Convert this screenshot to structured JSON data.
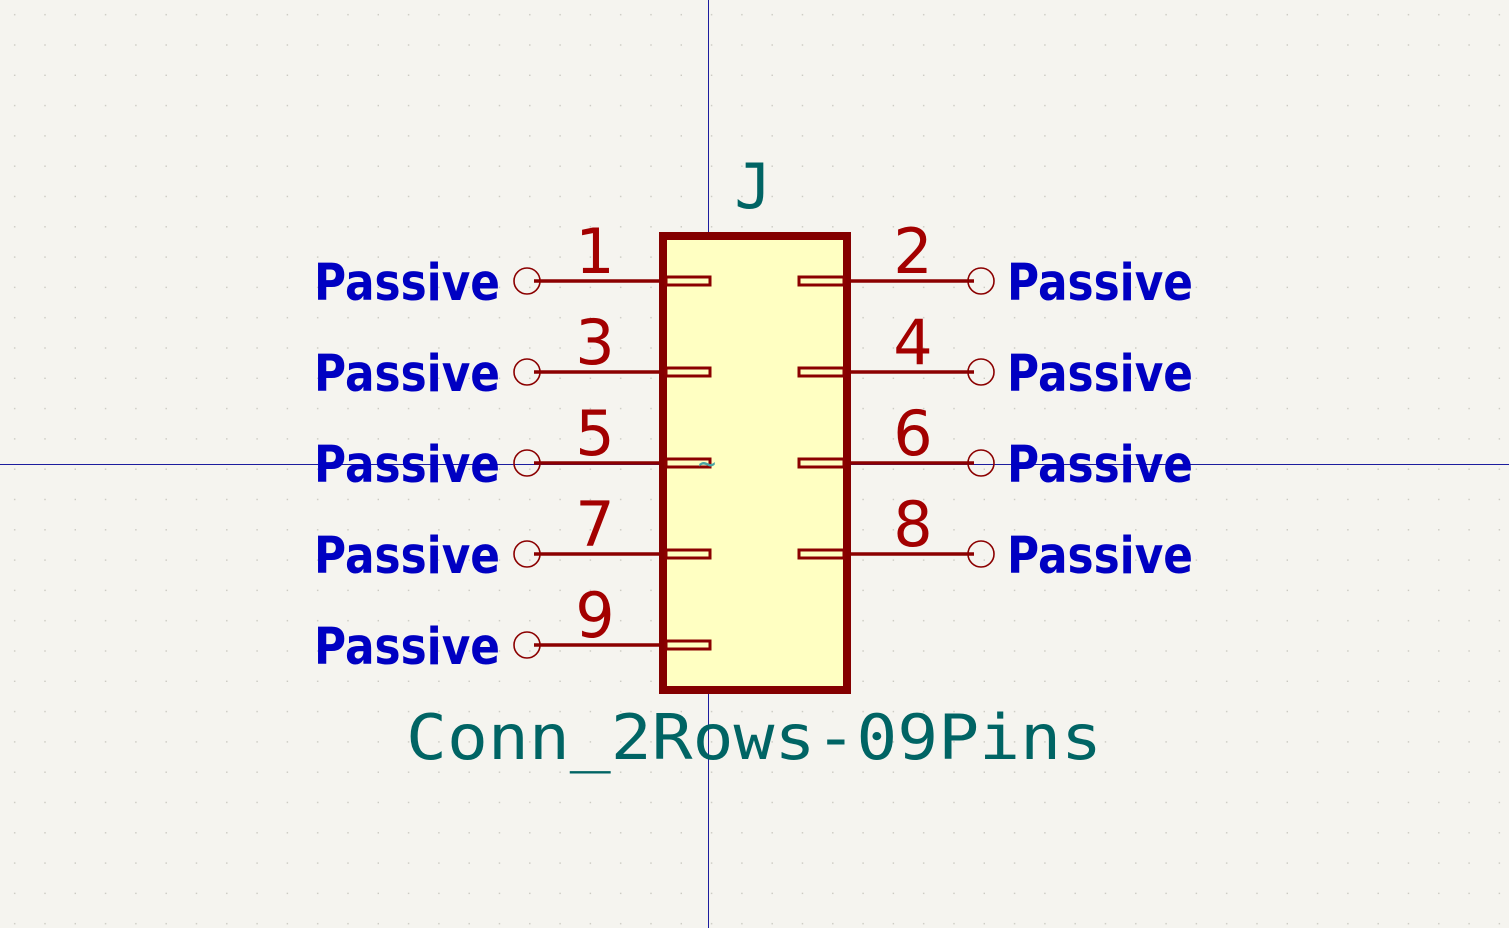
{
  "colors": {
    "background": "#f5f4ef",
    "grid_dot": "#c9c8c0",
    "crosshair": "#1c1c9e",
    "body_outline": "#840000",
    "body_fill": "#ffffc2",
    "pin": "#8b0000",
    "pin_number": "#a30000",
    "electrical_type": "#0000c2",
    "field_text": "#006464",
    "anchor_marker": "#4aa5a5"
  },
  "symbol": {
    "reference": "J",
    "value": "Conn_2Rows-09Pins",
    "anchor_marker": "~"
  },
  "pins": [
    {
      "number": "1",
      "type": "Passive",
      "side": "left",
      "row": 0
    },
    {
      "number": "2",
      "type": "Passive",
      "side": "right",
      "row": 0
    },
    {
      "number": "3",
      "type": "Passive",
      "side": "left",
      "row": 1
    },
    {
      "number": "4",
      "type": "Passive",
      "side": "right",
      "row": 1
    },
    {
      "number": "5",
      "type": "Passive",
      "side": "left",
      "row": 2
    },
    {
      "number": "6",
      "type": "Passive",
      "side": "right",
      "row": 2
    },
    {
      "number": "7",
      "type": "Passive",
      "side": "left",
      "row": 3
    },
    {
      "number": "8",
      "type": "Passive",
      "side": "right",
      "row": 3
    },
    {
      "number": "9",
      "type": "Passive",
      "side": "left",
      "row": 4
    }
  ]
}
